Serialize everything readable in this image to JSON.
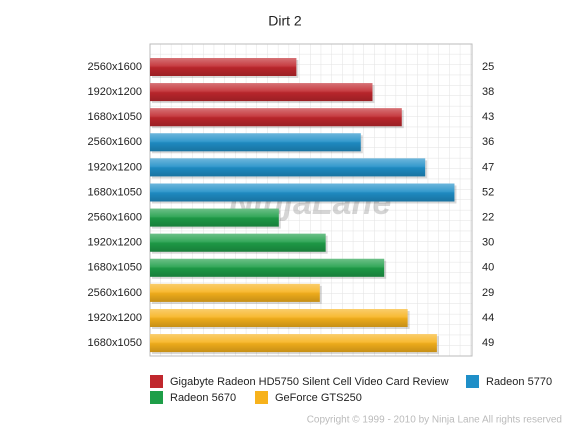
{
  "chart_data": {
    "type": "bar",
    "orientation": "horizontal",
    "title": "Dirt 2",
    "categories": [
      "2560x1600",
      "1920x1200",
      "1680x1050"
    ],
    "series": [
      {
        "name": "Gigabyte Radeon HD5750 Silent Cell Video Card Review",
        "color": "#c0272d",
        "values": [
          25,
          38,
          43
        ]
      },
      {
        "name": "Radeon 5770",
        "color": "#1f8fc8",
        "values": [
          36,
          47,
          52
        ]
      },
      {
        "name": "Radeon 5670",
        "color": "#1e9e48",
        "values": [
          22,
          30,
          40
        ]
      },
      {
        "name": "GeForce GTS250",
        "color": "#f7b21c",
        "values": [
          29,
          44,
          49
        ]
      }
    ],
    "xlim": [
      0,
      55
    ],
    "grid": true,
    "watermark": "NinjaLane",
    "copyright": "Copyright © 1999 - 2010 by Ninja Lane All rights reserved"
  }
}
